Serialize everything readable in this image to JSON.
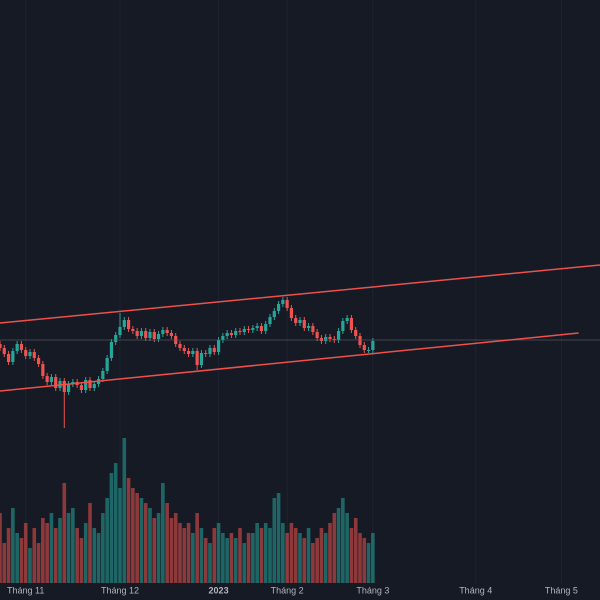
{
  "chart_data": {
    "type": "candlestick",
    "xlim": [
      0,
      140
    ],
    "ylim": [
      0,
      60
    ],
    "vlim": [
      0,
      150
    ],
    "xticks": [
      {
        "value": 6,
        "label": "Tháng 11"
      },
      {
        "value": 28,
        "label": "Tháng 12"
      },
      {
        "value": 51,
        "label": "2023"
      },
      {
        "value": 67,
        "label": "Tháng 2"
      },
      {
        "value": 87,
        "label": "Tháng 3"
      },
      {
        "value": 111,
        "label": "Tháng 4"
      },
      {
        "value": 131,
        "label": "Tháng 5"
      }
    ],
    "up_color": "#26a69a",
    "down_color": "#ef5350",
    "line_color": "#f0504c",
    "grid": true,
    "price_line": 26.0,
    "trendlines": [
      {
        "x": [
          0,
          140
        ],
        "y": [
          27.7,
          33.5
        ]
      },
      {
        "x": [
          0,
          135
        ],
        "y": [
          20.9,
          26.7
        ]
      }
    ],
    "open": [
      25.6,
      25.2,
      24.6,
      23.8,
      24.9,
      25.6,
      25.0,
      24.4,
      24.8,
      24.2,
      23.6,
      22.4,
      21.8,
      22.3,
      21.2,
      21.9,
      20.8,
      21.6,
      21.8,
      21.5,
      21.0,
      22.0,
      21.2,
      21.6,
      22.1,
      22.9,
      24.2,
      25.8,
      26.5,
      27.3,
      28.0,
      27.1,
      26.9,
      26.4,
      26.9,
      26.2,
      26.8,
      26.1,
      26.6,
      27.0,
      26.7,
      26.4,
      25.6,
      25.2,
      24.9,
      24.6,
      24.9,
      23.5,
      24.7,
      24.6,
      25.2,
      24.8,
      26.0,
      26.4,
      26.7,
      26.5,
      26.9,
      26.8,
      27.1,
      27.0,
      27.2,
      27.4,
      26.9,
      27.6,
      28.3,
      28.9,
      29.6,
      30.0,
      29.2,
      28.2,
      27.7,
      28.0,
      27.2,
      27.4,
      26.8,
      26.2,
      25.9,
      26.3,
      26.1,
      26.0,
      26.9,
      27.9,
      28.2,
      27.0,
      26.4,
      25.5,
      25.0,
      25.0
    ],
    "high": [
      25.9,
      25.5,
      24.9,
      25.2,
      25.9,
      25.9,
      25.3,
      25.1,
      25.1,
      24.5,
      23.9,
      22.7,
      22.6,
      22.6,
      22.2,
      22.2,
      21.9,
      22.1,
      22.1,
      21.8,
      22.3,
      22.3,
      21.9,
      22.4,
      23.2,
      24.5,
      26.1,
      26.8,
      28.7,
      28.3,
      28.3,
      27.4,
      27.2,
      27.2,
      27.2,
      27.1,
      27.1,
      26.9,
      27.3,
      27.3,
      27.0,
      26.7,
      25.9,
      25.5,
      25.2,
      25.2,
      25.2,
      25.0,
      25.0,
      25.5,
      25.5,
      26.3,
      26.7,
      27.0,
      27.0,
      27.2,
      27.2,
      27.4,
      27.4,
      27.5,
      27.7,
      27.7,
      27.9,
      28.6,
      29.2,
      29.9,
      30.3,
      30.3,
      29.5,
      28.5,
      28.3,
      28.3,
      27.7,
      27.7,
      27.1,
      26.5,
      26.6,
      26.6,
      26.4,
      27.2,
      28.2,
      28.5,
      28.5,
      27.3,
      26.7,
      25.8,
      25.3,
      26.2
    ],
    "low": [
      24.9,
      24.3,
      23.5,
      23.5,
      24.6,
      24.7,
      24.1,
      24.1,
      23.9,
      23.3,
      22.1,
      21.5,
      21.5,
      20.9,
      20.9,
      17.2,
      20.5,
      21.3,
      21.2,
      20.7,
      20.7,
      20.9,
      20.9,
      21.3,
      21.8,
      22.6,
      23.9,
      25.5,
      26.2,
      27.0,
      26.8,
      26.6,
      26.1,
      26.1,
      25.9,
      25.9,
      25.8,
      25.8,
      26.3,
      26.4,
      26.1,
      25.3,
      24.9,
      24.6,
      24.3,
      24.3,
      23.0,
      23.2,
      24.3,
      24.3,
      24.5,
      24.5,
      25.7,
      26.1,
      26.2,
      26.2,
      26.5,
      26.5,
      26.7,
      26.7,
      26.9,
      26.6,
      26.6,
      27.3,
      28.0,
      28.6,
      29.3,
      28.9,
      27.9,
      27.4,
      27.4,
      26.9,
      26.9,
      26.5,
      25.9,
      25.6,
      25.6,
      25.8,
      25.7,
      25.7,
      26.6,
      27.6,
      26.7,
      26.1,
      25.2,
      24.7,
      24.7,
      24.7
    ],
    "close": [
      25.2,
      24.6,
      23.8,
      24.9,
      25.6,
      25.0,
      24.4,
      24.8,
      24.2,
      23.6,
      22.4,
      21.8,
      22.3,
      21.2,
      21.9,
      20.8,
      21.6,
      21.8,
      21.5,
      21.0,
      22.0,
      21.2,
      21.6,
      22.1,
      22.9,
      24.2,
      25.8,
      26.5,
      27.3,
      28.0,
      27.1,
      26.9,
      26.4,
      26.9,
      26.2,
      26.8,
      26.1,
      26.6,
      27.0,
      26.7,
      26.4,
      25.6,
      25.2,
      24.9,
      24.6,
      24.9,
      23.5,
      24.7,
      24.6,
      25.2,
      24.8,
      26.0,
      26.4,
      26.7,
      26.5,
      26.9,
      26.8,
      27.1,
      27.0,
      27.2,
      27.4,
      26.9,
      27.6,
      28.3,
      28.9,
      29.6,
      30.0,
      29.2,
      28.2,
      27.7,
      28.0,
      27.2,
      27.4,
      26.8,
      26.2,
      25.9,
      26.3,
      26.1,
      26.0,
      26.9,
      27.9,
      28.2,
      27.0,
      26.4,
      25.5,
      25.0,
      25.0,
      25.9
    ],
    "volume": [
      70,
      40,
      55,
      75,
      50,
      45,
      60,
      35,
      55,
      40,
      65,
      60,
      70,
      55,
      65,
      100,
      70,
      75,
      55,
      45,
      60,
      80,
      55,
      50,
      70,
      85,
      110,
      120,
      95,
      145,
      105,
      95,
      90,
      85,
      80,
      75,
      65,
      70,
      100,
      80,
      65,
      70,
      60,
      55,
      60,
      50,
      70,
      55,
      45,
      40,
      55,
      60,
      50,
      45,
      50,
      45,
      55,
      40,
      50,
      50,
      60,
      55,
      60,
      55,
      85,
      90,
      60,
      50,
      60,
      55,
      50,
      45,
      55,
      40,
      45,
      55,
      50,
      60,
      70,
      75,
      85,
      70,
      55,
      65,
      50,
      45,
      40,
      50
    ]
  }
}
